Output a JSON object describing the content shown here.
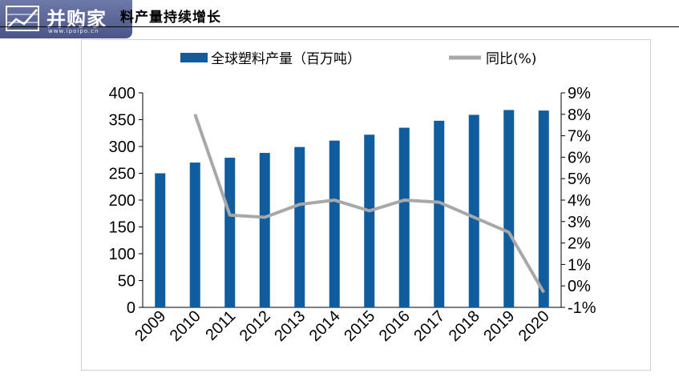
{
  "header": {
    "title": "料产量持续增长",
    "logo_text": "并购家",
    "logo_url": "www.ipoipo.cn"
  },
  "chart_data": {
    "type": "bar",
    "categories": [
      "2009",
      "2010",
      "2011",
      "2012",
      "2013",
      "2014",
      "2015",
      "2016",
      "2017",
      "2018",
      "2019",
      "2020"
    ],
    "series": [
      {
        "name": "全球塑料产量（百万吨）",
        "type": "bar",
        "axis": "left",
        "values": [
          250,
          270,
          279,
          288,
          299,
          311,
          322,
          335,
          348,
          359,
          368,
          367
        ]
      },
      {
        "name": "同比(%)",
        "type": "line",
        "axis": "right",
        "values": [
          null,
          8.0,
          3.3,
          3.2,
          3.8,
          4.0,
          3.5,
          4.0,
          3.9,
          3.2,
          2.5,
          -0.3
        ]
      }
    ],
    "y_left": {
      "ylim": [
        0,
        400
      ],
      "ticks": [
        0,
        50,
        100,
        150,
        200,
        250,
        300,
        350,
        400
      ]
    },
    "y_right": {
      "ylim": [
        -1,
        9
      ],
      "ticks": [
        "-1%",
        "0%",
        "1%",
        "2%",
        "3%",
        "4%",
        "5%",
        "6%",
        "7%",
        "8%",
        "9%"
      ]
    },
    "colors": {
      "bar": "#0f5c9e",
      "line": "#a8a8a8"
    },
    "legend_position": "top",
    "grid": false
  }
}
